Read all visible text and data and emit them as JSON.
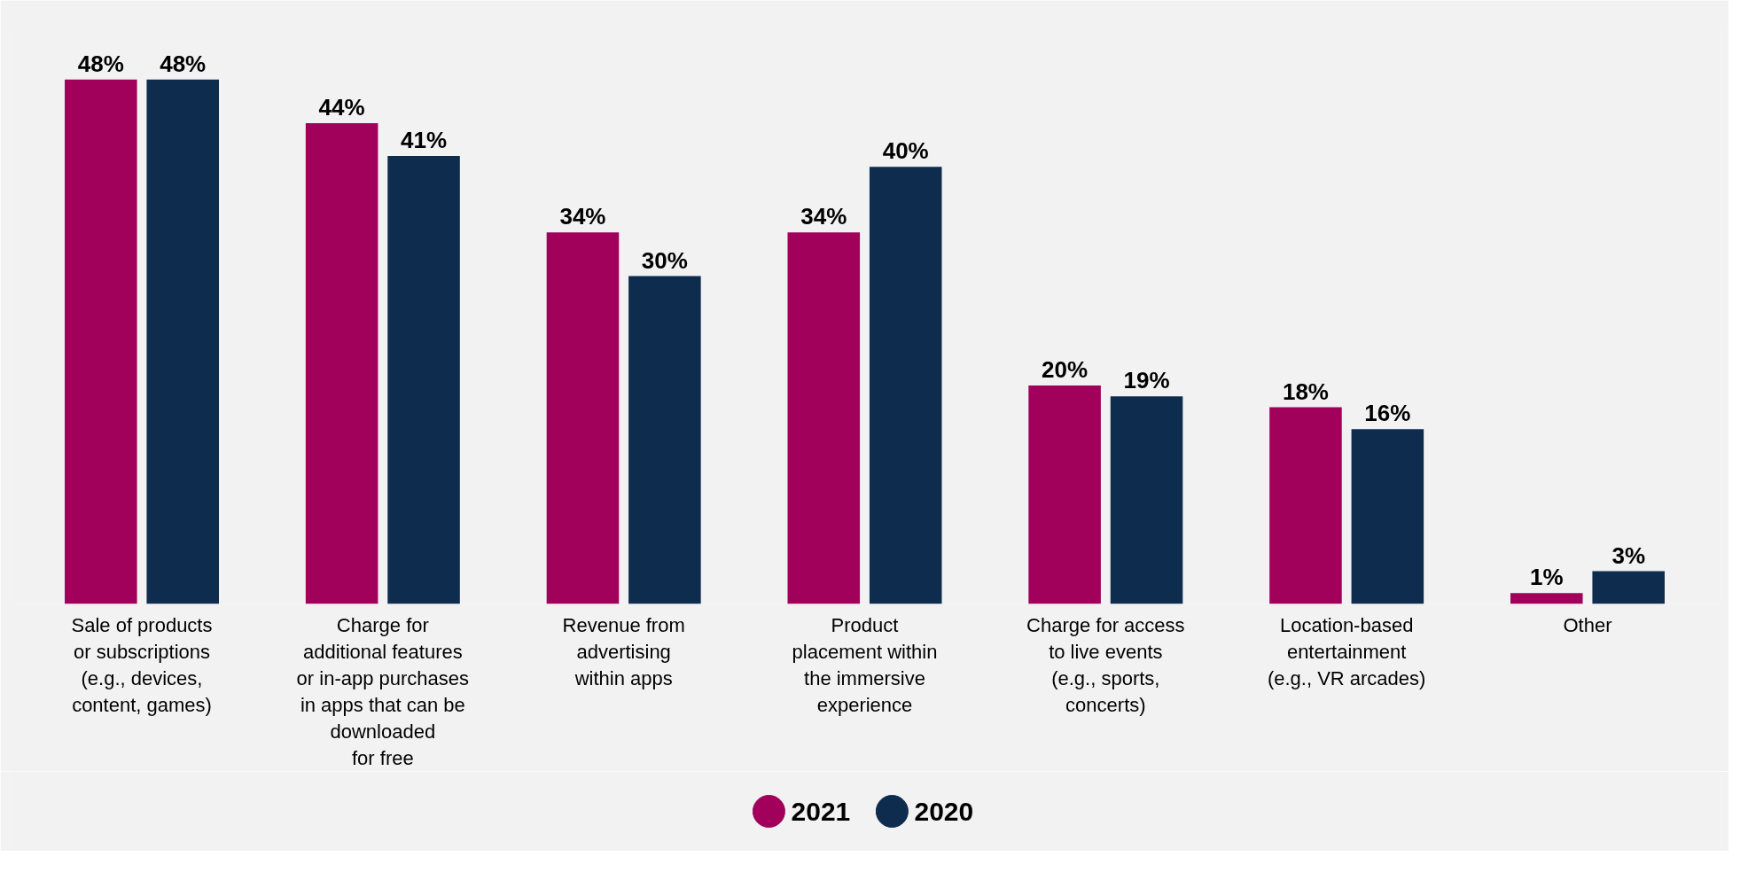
{
  "chart_data": {
    "type": "bar",
    "categories": [
      "Sale of products\nor subscriptions\n(e.g., devices,\ncontent, games)",
      "Charge for\nadditional features\nor in-app purchases\nin apps that can be\ndownloaded\nfor free",
      "Revenue from\nadvertising\nwithin apps",
      "Product\nplacement within\nthe immersive\nexperience",
      "Charge for access\nto live events\n(e.g., sports,\nconcerts)",
      "Location-based\nentertainment\n(e.g., VR arcades)",
      "Other"
    ],
    "series": [
      {
        "name": "2021",
        "color": "#a1005b",
        "values": [
          48,
          44,
          34,
          34,
          20,
          18,
          1
        ],
        "value_labels": [
          "48%",
          "44%",
          "34%",
          "34%",
          "20%",
          "18%",
          "1%"
        ]
      },
      {
        "name": "2020",
        "color": "#0e2c4e",
        "values": [
          48,
          41,
          30,
          40,
          19,
          16,
          3
        ],
        "value_labels": [
          "48%",
          "41%",
          "30%",
          "40%",
          "19%",
          "16%",
          "3%"
        ]
      }
    ],
    "legend": "bottom",
    "grid": false,
    "tick_labels": "x"
  }
}
